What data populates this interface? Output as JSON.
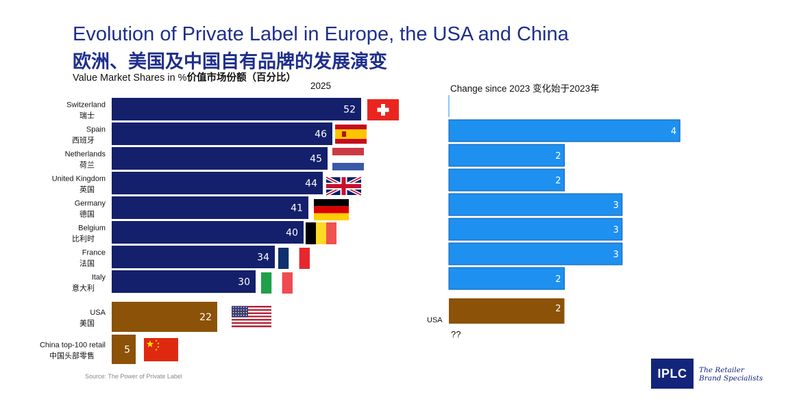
{
  "title_en": "Evolution of Private Label in Europe, the USA and China",
  "title_zh": "欧洲、美国及中国自有品牌的发展演变",
  "subtitle_en": "Value Market Shares in %",
  "subtitle_zh": "价值市场份额（百分比）",
  "source": "Source: The Power of Private Label",
  "logo": {
    "text": "IPLC",
    "tagline": "The Retailer Brand Specialists"
  },
  "colors": {
    "europe_share": "#14206b",
    "europe_change": "#1e90f0",
    "usa_china": "#8b5208",
    "title": "#1f2f8c"
  },
  "chart_data": [
    {
      "type": "bar",
      "orientation": "horizontal",
      "title": "2025",
      "categories": [
        "Switzerland 瑞士",
        "Spain 西班牙",
        "Netherlands 荷兰",
        "United Kingdom 英国",
        "Germany 德国",
        "Belgium 比利时",
        "France 法国",
        "Italy 意大利",
        "USA 美国",
        "China top-100 retail 中国头部零售"
      ],
      "category_lines": [
        [
          "Switzerland",
          "瑞士"
        ],
        [
          "Spain",
          "西班牙"
        ],
        [
          "Netherlands",
          "荷兰"
        ],
        [
          "United Kingdom",
          "英国"
        ],
        [
          "Germany",
          "德国"
        ],
        [
          "Belgium",
          "比利时"
        ],
        [
          "France",
          "法国"
        ],
        [
          "Italy",
          "意大利"
        ],
        [
          "USA",
          "美国"
        ],
        [
          "China top-100 retail",
          "中国头部零售"
        ]
      ],
      "values": [
        52,
        46,
        45,
        44,
        41,
        40,
        34,
        30,
        22,
        5
      ],
      "flags": [
        "switzerland-flag-icon",
        "spain-flag-icon",
        "netherlands-flag-icon",
        "uk-flag-icon",
        "germany-flag-icon",
        "belgium-flag-icon",
        "france-flag-icon",
        "italy-flag-icon",
        "usa-flag-icon",
        "china-flag-icon"
      ]
    },
    {
      "type": "bar",
      "orientation": "horizontal",
      "title": "Change since 2023 变化始于2023年",
      "categories": [
        "Switzerland",
        "Spain",
        "Netherlands",
        "United Kingdom",
        "Germany",
        "Belgium",
        "France",
        "Italy",
        "USA"
      ],
      "values": [
        0,
        4,
        2,
        2,
        3,
        3,
        3,
        2,
        2
      ],
      "value_labels": [
        "",
        "4",
        "2",
        "2",
        "3",
        "3",
        "3",
        "2",
        "2"
      ],
      "usa_label": "USA",
      "usa_note": "??"
    }
  ]
}
